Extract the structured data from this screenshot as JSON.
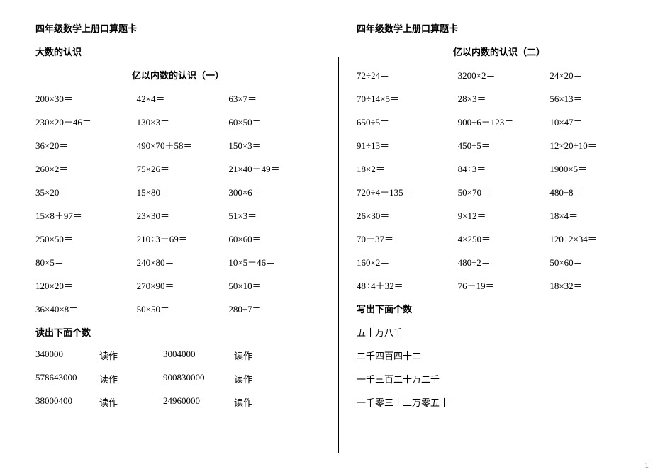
{
  "pageNumber": "1",
  "left": {
    "title": "四年级数学上册口算题卡",
    "subtitle1": "大数的认识",
    "subtitle2": "亿以内数的认识（一）",
    "rows": [
      [
        "200×30＝",
        "42×4＝",
        "63×7＝"
      ],
      [
        "230×20－46＝",
        "130×3＝",
        "60×50＝"
      ],
      [
        "36×20＝",
        "490×70＋58＝",
        "150×3＝"
      ],
      [
        "260×2＝",
        "75×26＝",
        "21×40－49＝"
      ],
      [
        "35×20＝",
        "15×80＝",
        "300×6＝"
      ],
      [
        "15×8＋97＝",
        "23×30＝",
        "51×3＝"
      ],
      [
        "250×50＝",
        "210÷3－69＝",
        "60×60＝"
      ],
      [
        "80×5＝",
        "240×80＝",
        "10×5－46＝"
      ],
      [
        "120×20＝",
        "270×90＝",
        "50×10＝"
      ],
      [
        "36×40×8＝",
        "50×50＝",
        "280÷7＝"
      ]
    ],
    "readoutHeading": "读出下面个数",
    "readLabel": "读作",
    "readRows": [
      [
        "340000",
        "3004000"
      ],
      [
        "578643000",
        "900830000"
      ],
      [
        "38000400",
        "24960000"
      ]
    ]
  },
  "right": {
    "title": "四年级数学上册口算题卡",
    "subtitle": "亿以内数的认识（二）",
    "rows": [
      [
        "72÷24＝",
        "3200×2＝",
        "24×20＝"
      ],
      [
        "70÷14×5＝",
        "28×3＝",
        "56×13＝"
      ],
      [
        "650÷5＝",
        "900÷6－123＝",
        "10×47＝"
      ],
      [
        "91÷13＝",
        "450÷5＝",
        "12×20÷10＝"
      ],
      [
        "18×2＝",
        "84÷3＝",
        "1900×5＝"
      ],
      [
        "720÷4－135＝",
        "50×70＝",
        "480÷8＝"
      ],
      [
        "26×30＝",
        "9×12＝",
        "18×4＝"
      ],
      [
        "70－37＝",
        "4×250＝",
        "120÷2×34＝"
      ],
      [
        "160×2＝",
        "480÷2＝",
        "50×60＝"
      ],
      [
        "48÷4＋32＝",
        "76－19＝",
        "18×32＝"
      ]
    ],
    "writeHeading": "写出下面个数",
    "writeLines": [
      "五十万八千",
      "二千四百四十二",
      "一千三百二十万二千",
      "一千零三十二万零五十"
    ]
  }
}
